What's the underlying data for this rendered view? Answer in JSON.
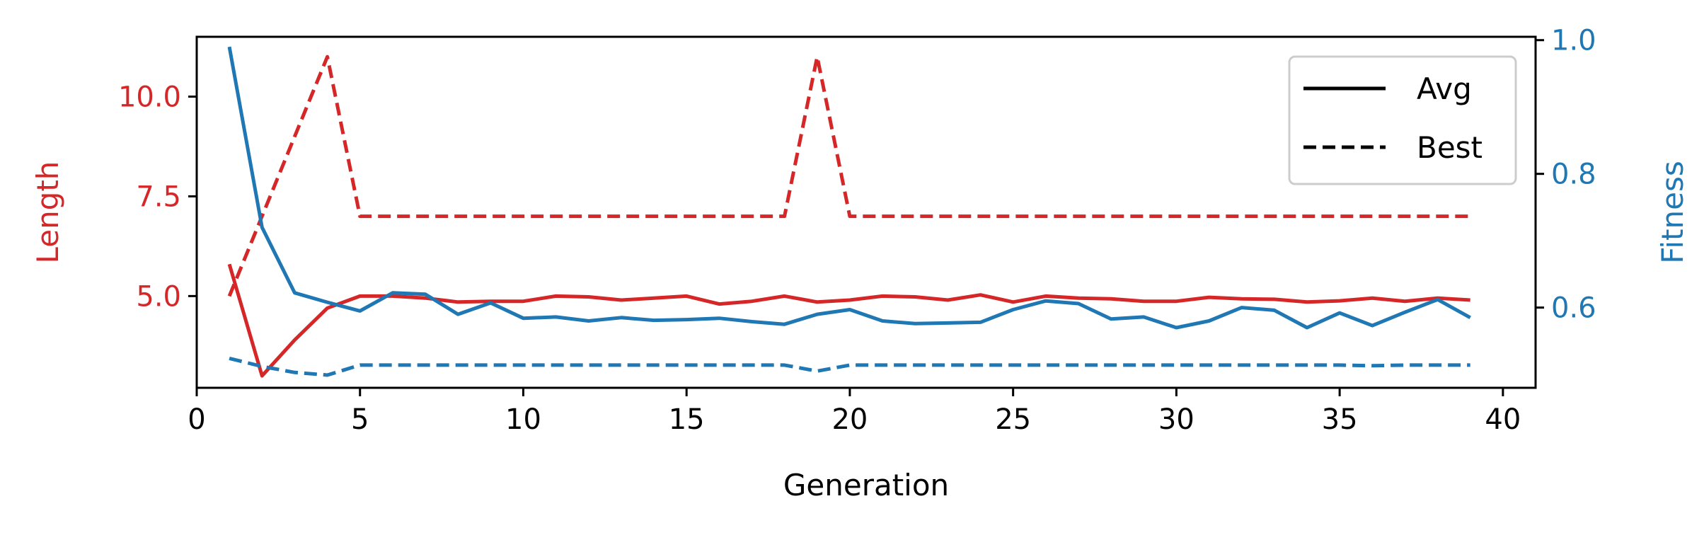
{
  "chart_data": {
    "type": "line",
    "xlabel": "Generation",
    "ylabel_left": "Length",
    "ylabel_right": "Fitness",
    "xlim": [
      0,
      41
    ],
    "ylim_left": [
      2.7,
      11.5
    ],
    "ylim_right": [
      0.48,
      1.005
    ],
    "x_ticks": [
      "0",
      "5",
      "10",
      "15",
      "20",
      "25",
      "30",
      "35",
      "40"
    ],
    "y_left_ticks": [
      "5.0",
      "7.5",
      "10.0"
    ],
    "y_right_ticks": [
      "0.6",
      "0.8",
      "1.0"
    ],
    "colors": {
      "length": "#d62728",
      "fitness": "#1f77b4",
      "axis": "#000000"
    },
    "legend": {
      "position": "top-right",
      "entries": [
        {
          "label": "Avg",
          "style": "solid"
        },
        {
          "label": "Best",
          "style": "dashed"
        }
      ]
    },
    "x": [
      1,
      2,
      3,
      4,
      5,
      6,
      7,
      8,
      9,
      10,
      11,
      12,
      13,
      14,
      15,
      16,
      17,
      18,
      19,
      20,
      21,
      22,
      23,
      24,
      25,
      26,
      27,
      28,
      29,
      30,
      31,
      32,
      33,
      34,
      35,
      36,
      37,
      38,
      39
    ],
    "series": [
      {
        "axis": "left",
        "style": "solid",
        "color": "#d62728",
        "values": [
          5.8,
          3.0,
          3.9,
          4.7,
          5.0,
          5.0,
          4.95,
          4.85,
          4.87,
          4.87,
          5.0,
          4.98,
          4.9,
          4.95,
          5.0,
          4.8,
          4.87,
          5.0,
          4.85,
          4.9,
          5.0,
          4.98,
          4.9,
          5.03,
          4.85,
          5.0,
          4.95,
          4.93,
          4.87,
          4.87,
          4.97,
          4.93,
          4.92,
          4.85,
          4.88,
          4.95,
          4.87,
          4.95,
          4.9
        ]
      },
      {
        "axis": "left",
        "style": "dashed",
        "color": "#d62728",
        "values": [
          5.0,
          7.0,
          9.0,
          11.0,
          7.0,
          7.0,
          7.0,
          7.0,
          7.0,
          7.0,
          7.0,
          7.0,
          7.0,
          7.0,
          7.0,
          7.0,
          7.0,
          7.0,
          11.0,
          7.0,
          7.0,
          7.0,
          7.0,
          7.0,
          7.0,
          7.0,
          7.0,
          7.0,
          7.0,
          7.0,
          7.0,
          7.0,
          7.0,
          7.0,
          7.0,
          7.0,
          7.0,
          7.0,
          7.0
        ]
      },
      {
        "axis": "right",
        "style": "solid",
        "color": "#1f77b4",
        "values": [
          0.99,
          0.72,
          0.622,
          0.608,
          0.595,
          0.622,
          0.62,
          0.59,
          0.607,
          0.584,
          0.586,
          0.58,
          0.585,
          0.581,
          0.582,
          0.584,
          0.579,
          0.575,
          0.59,
          0.597,
          0.58,
          0.576,
          0.577,
          0.578,
          0.597,
          0.61,
          0.606,
          0.583,
          0.586,
          0.57,
          0.58,
          0.6,
          0.596,
          0.57,
          0.592,
          0.573,
          0.593,
          0.612,
          0.585
        ]
      },
      {
        "axis": "right",
        "style": "dashed",
        "color": "#1f77b4",
        "values": [
          0.524,
          0.512,
          0.503,
          0.499,
          0.514,
          0.514,
          0.514,
          0.514,
          0.514,
          0.514,
          0.514,
          0.514,
          0.514,
          0.514,
          0.514,
          0.514,
          0.514,
          0.514,
          0.505,
          0.514,
          0.514,
          0.514,
          0.514,
          0.514,
          0.514,
          0.514,
          0.514,
          0.514,
          0.514,
          0.514,
          0.514,
          0.514,
          0.514,
          0.514,
          0.514,
          0.513,
          0.514,
          0.514,
          0.514
        ]
      }
    ]
  }
}
